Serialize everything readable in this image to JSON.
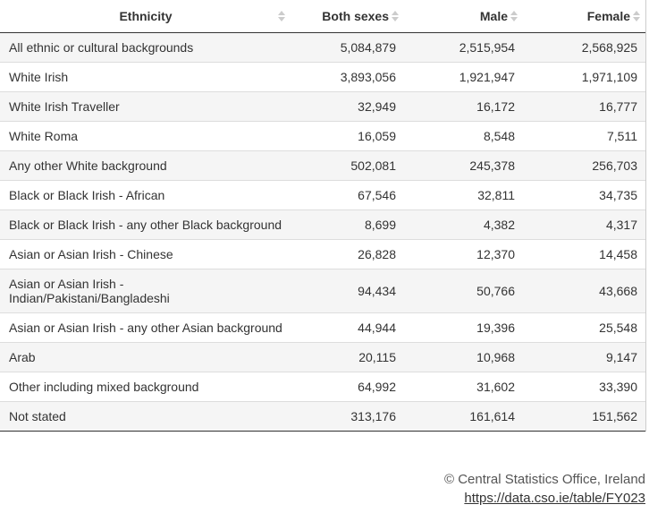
{
  "table": {
    "columns": [
      "Ethnicity",
      "Both sexes",
      "Male",
      "Female"
    ],
    "rows": [
      [
        "All ethnic or cultural backgrounds",
        "5,084,879",
        "2,515,954",
        "2,568,925"
      ],
      [
        "White Irish",
        "3,893,056",
        "1,921,947",
        "1,971,109"
      ],
      [
        "White Irish Traveller",
        "32,949",
        "16,172",
        "16,777"
      ],
      [
        "White Roma",
        "16,059",
        "8,548",
        "7,511"
      ],
      [
        "Any other White background",
        "502,081",
        "245,378",
        "256,703"
      ],
      [
        "Black or Black Irish - African",
        "67,546",
        "32,811",
        "34,735"
      ],
      [
        "Black or Black Irish - any other Black background",
        "8,699",
        "4,382",
        "4,317"
      ],
      [
        "Asian or Asian Irish - Chinese",
        "26,828",
        "12,370",
        "14,458"
      ],
      [
        "Asian or Asian Irish - Indian/Pakistani/Bangladeshi",
        "94,434",
        "50,766",
        "43,668"
      ],
      [
        "Asian or Asian Irish - any other Asian background",
        "44,944",
        "19,396",
        "25,548"
      ],
      [
        "Arab",
        "20,115",
        "10,968",
        "9,147"
      ],
      [
        "Other including mixed background",
        "64,992",
        "31,602",
        "33,390"
      ],
      [
        "Not stated",
        "313,176",
        "161,614",
        "151,562"
      ]
    ]
  },
  "footer": {
    "source": "© Central Statistics Office, Ireland",
    "link": "https://data.cso.ie/table/FY023"
  }
}
